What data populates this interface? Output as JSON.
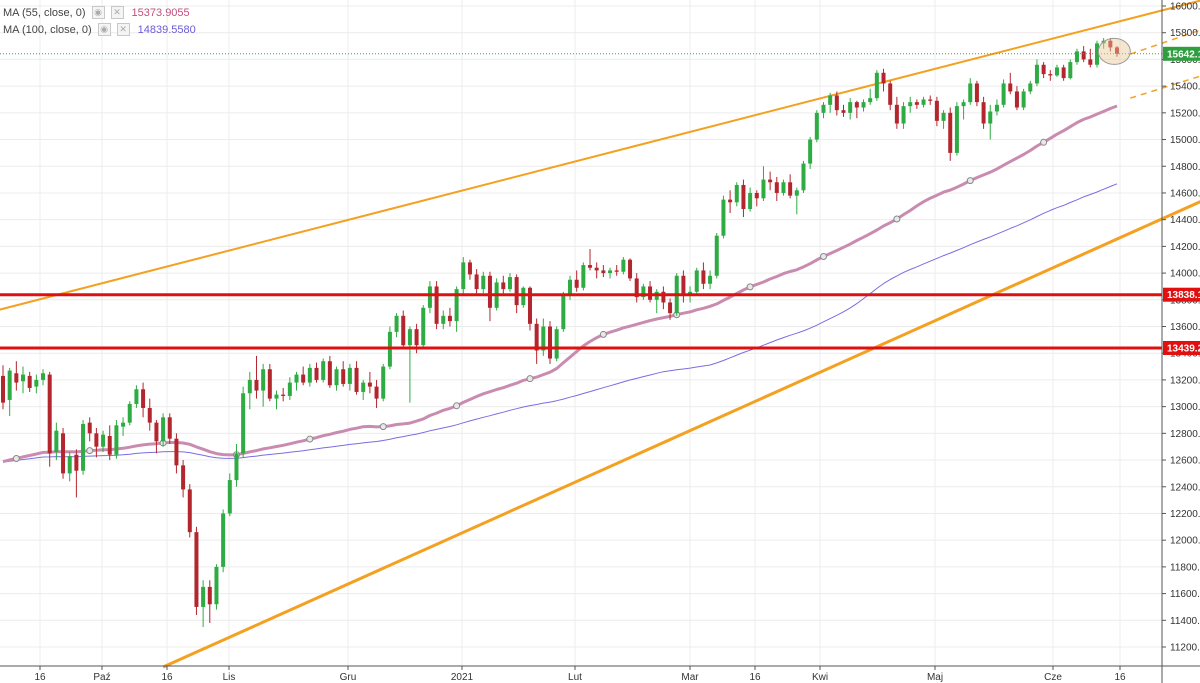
{
  "legend": {
    "ma55": {
      "label": "MA (55, close, 0)",
      "value": "15373.9055",
      "color": "#c0507a"
    },
    "ma100": {
      "label": "MA (100, close, 0)",
      "value": "14839.5580",
      "color": "#6b5bd6"
    }
  },
  "chart_data": {
    "type": "candlestick",
    "title": "",
    "xlabel": "",
    "ylabel": "",
    "ylim": [
      11050,
      16080
    ],
    "y_ticks": [
      "16000.0",
      "15800.0",
      "15600.0",
      "15400.0",
      "15200.0",
      "15000.0",
      "14800.0",
      "14600.0",
      "14400.0",
      "14200.0",
      "14000.0",
      "13800.0",
      "13600.0",
      "13400.0",
      "13200.0",
      "13000.0",
      "12800.0",
      "12600.0",
      "12400.0",
      "12200.0",
      "12000.0",
      "11800.0",
      "11600.0",
      "11400.0",
      "11200.0"
    ],
    "x_ticks": [
      "16",
      "Paź",
      "16",
      "Lis",
      "Gru",
      "2021",
      "Lut",
      "Mar",
      "16",
      "Kwi",
      "Maj",
      "Cze",
      "16"
    ],
    "price_labels": [
      {
        "value": 15642.1,
        "text": "15642.1",
        "color": "#2e9e3f"
      },
      {
        "value": 13838.1,
        "text": "13838.1",
        "color": "#e01010"
      },
      {
        "value": 13439.2,
        "text": "13439.2",
        "color": "#e01010"
      }
    ],
    "horizontal_levels": [
      13838.1,
      13439.2
    ],
    "last_price": 15642.1,
    "colors": {
      "up": "#2eab42",
      "down": "#b3262d",
      "ma55": "#c98bb0",
      "ma100": "#7a6ee0",
      "trend": "#f4a020",
      "level": "#e01010",
      "last": "#3aa04a"
    },
    "candles": [
      {
        "o": 13230,
        "h": 13310,
        "l": 12980,
        "c": 13030
      },
      {
        "o": 13050,
        "h": 13290,
        "l": 12930,
        "c": 13270
      },
      {
        "o": 13250,
        "h": 13340,
        "l": 13120,
        "c": 13180
      },
      {
        "o": 13190,
        "h": 13300,
        "l": 13100,
        "c": 13240
      },
      {
        "o": 13230,
        "h": 13260,
        "l": 13110,
        "c": 13140
      },
      {
        "o": 13150,
        "h": 13240,
        "l": 13100,
        "c": 13200
      },
      {
        "o": 13200,
        "h": 13280,
        "l": 13160,
        "c": 13250
      },
      {
        "o": 13240,
        "h": 13260,
        "l": 12550,
        "c": 12650
      },
      {
        "o": 12660,
        "h": 12880,
        "l": 12600,
        "c": 12820
      },
      {
        "o": 12800,
        "h": 12840,
        "l": 12460,
        "c": 12500
      },
      {
        "o": 12500,
        "h": 12660,
        "l": 12440,
        "c": 12630
      },
      {
        "o": 12640,
        "h": 12680,
        "l": 12320,
        "c": 12520
      },
      {
        "o": 12520,
        "h": 12900,
        "l": 12490,
        "c": 12870
      },
      {
        "o": 12880,
        "h": 12920,
        "l": 12740,
        "c": 12800
      },
      {
        "o": 12800,
        "h": 12840,
        "l": 12620,
        "c": 12700
      },
      {
        "o": 12700,
        "h": 12820,
        "l": 12660,
        "c": 12790
      },
      {
        "o": 12780,
        "h": 12860,
        "l": 12600,
        "c": 12640
      },
      {
        "o": 12640,
        "h": 12900,
        "l": 12610,
        "c": 12860
      },
      {
        "o": 12850,
        "h": 12920,
        "l": 12780,
        "c": 12880
      },
      {
        "o": 12880,
        "h": 13040,
        "l": 12860,
        "c": 13020
      },
      {
        "o": 13020,
        "h": 13160,
        "l": 12990,
        "c": 13130
      },
      {
        "o": 13130,
        "h": 13180,
        "l": 12920,
        "c": 12990
      },
      {
        "o": 12990,
        "h": 13060,
        "l": 12820,
        "c": 12880
      },
      {
        "o": 12880,
        "h": 12900,
        "l": 12650,
        "c": 12740
      },
      {
        "o": 12740,
        "h": 12950,
        "l": 12700,
        "c": 12920
      },
      {
        "o": 12920,
        "h": 12950,
        "l": 12720,
        "c": 12760
      },
      {
        "o": 12760,
        "h": 12800,
        "l": 12500,
        "c": 12560
      },
      {
        "o": 12560,
        "h": 12600,
        "l": 12320,
        "c": 12380
      },
      {
        "o": 12380,
        "h": 12420,
        "l": 12020,
        "c": 12060
      },
      {
        "o": 12060,
        "h": 12100,
        "l": 11440,
        "c": 11500
      },
      {
        "o": 11500,
        "h": 11700,
        "l": 11350,
        "c": 11650
      },
      {
        "o": 11650,
        "h": 11700,
        "l": 11380,
        "c": 11520
      },
      {
        "o": 11520,
        "h": 11820,
        "l": 11480,
        "c": 11800
      },
      {
        "o": 11800,
        "h": 12230,
        "l": 11760,
        "c": 12200
      },
      {
        "o": 12200,
        "h": 12500,
        "l": 12180,
        "c": 12450
      },
      {
        "o": 12450,
        "h": 12720,
        "l": 12400,
        "c": 12650
      },
      {
        "o": 12650,
        "h": 13150,
        "l": 12620,
        "c": 13100
      },
      {
        "o": 13100,
        "h": 13260,
        "l": 12980,
        "c": 13200
      },
      {
        "o": 13200,
        "h": 13380,
        "l": 13060,
        "c": 13120
      },
      {
        "o": 13120,
        "h": 13320,
        "l": 13000,
        "c": 13280
      },
      {
        "o": 13280,
        "h": 13320,
        "l": 13040,
        "c": 13060
      },
      {
        "o": 13060,
        "h": 13120,
        "l": 12980,
        "c": 13090
      },
      {
        "o": 13090,
        "h": 13140,
        "l": 13040,
        "c": 13080
      },
      {
        "o": 13080,
        "h": 13220,
        "l": 13050,
        "c": 13180
      },
      {
        "o": 13180,
        "h": 13260,
        "l": 13120,
        "c": 13240
      },
      {
        "o": 13240,
        "h": 13300,
        "l": 13160,
        "c": 13180
      },
      {
        "o": 13180,
        "h": 13320,
        "l": 13150,
        "c": 13290
      },
      {
        "o": 13290,
        "h": 13330,
        "l": 13180,
        "c": 13200
      },
      {
        "o": 13200,
        "h": 13360,
        "l": 13180,
        "c": 13340
      },
      {
        "o": 13340,
        "h": 13380,
        "l": 13140,
        "c": 13160
      },
      {
        "o": 13160,
        "h": 13300,
        "l": 13120,
        "c": 13280
      },
      {
        "o": 13280,
        "h": 13340,
        "l": 13150,
        "c": 13170
      },
      {
        "o": 13170,
        "h": 13320,
        "l": 13120,
        "c": 13290
      },
      {
        "o": 13290,
        "h": 13340,
        "l": 13090,
        "c": 13110
      },
      {
        "o": 13110,
        "h": 13200,
        "l": 13050,
        "c": 13180
      },
      {
        "o": 13180,
        "h": 13260,
        "l": 13100,
        "c": 13150
      },
      {
        "o": 13150,
        "h": 13200,
        "l": 12990,
        "c": 13060
      },
      {
        "o": 13060,
        "h": 13320,
        "l": 13040,
        "c": 13300
      },
      {
        "o": 13300,
        "h": 13600,
        "l": 13280,
        "c": 13560
      },
      {
        "o": 13560,
        "h": 13700,
        "l": 13520,
        "c": 13680
      },
      {
        "o": 13680,
        "h": 13720,
        "l": 13440,
        "c": 13460
      },
      {
        "o": 13460,
        "h": 13600,
        "l": 13030,
        "c": 13580
      },
      {
        "o": 13580,
        "h": 13620,
        "l": 13400,
        "c": 13460
      },
      {
        "o": 13460,
        "h": 13760,
        "l": 13440,
        "c": 13740
      },
      {
        "o": 13740,
        "h": 13940,
        "l": 13700,
        "c": 13900
      },
      {
        "o": 13900,
        "h": 13940,
        "l": 13580,
        "c": 13620
      },
      {
        "o": 13620,
        "h": 13720,
        "l": 13580,
        "c": 13680
      },
      {
        "o": 13680,
        "h": 13740,
        "l": 13600,
        "c": 13640
      },
      {
        "o": 13640,
        "h": 13900,
        "l": 13560,
        "c": 13880
      },
      {
        "o": 13880,
        "h": 14120,
        "l": 13840,
        "c": 14080
      },
      {
        "o": 14080,
        "h": 14100,
        "l": 13950,
        "c": 13990
      },
      {
        "o": 13990,
        "h": 14030,
        "l": 13840,
        "c": 13880
      },
      {
        "o": 13880,
        "h": 14010,
        "l": 13850,
        "c": 13980
      },
      {
        "o": 13980,
        "h": 14010,
        "l": 13640,
        "c": 13740
      },
      {
        "o": 13740,
        "h": 13960,
        "l": 13720,
        "c": 13930
      },
      {
        "o": 13930,
        "h": 13980,
        "l": 13840,
        "c": 13880
      },
      {
        "o": 13880,
        "h": 14000,
        "l": 13860,
        "c": 13970
      },
      {
        "o": 13970,
        "h": 13990,
        "l": 13700,
        "c": 13760
      },
      {
        "o": 13760,
        "h": 13900,
        "l": 13740,
        "c": 13890
      },
      {
        "o": 13890,
        "h": 13900,
        "l": 13570,
        "c": 13620
      },
      {
        "o": 13620,
        "h": 13660,
        "l": 13320,
        "c": 13420
      },
      {
        "o": 13420,
        "h": 13660,
        "l": 13380,
        "c": 13600
      },
      {
        "o": 13600,
        "h": 13640,
        "l": 13320,
        "c": 13360
      },
      {
        "o": 13360,
        "h": 13600,
        "l": 13340,
        "c": 13580
      },
      {
        "o": 13580,
        "h": 13860,
        "l": 13560,
        "c": 13840
      },
      {
        "o": 13840,
        "h": 13980,
        "l": 13800,
        "c": 13950
      },
      {
        "o": 13950,
        "h": 14020,
        "l": 13860,
        "c": 13890
      },
      {
        "o": 13890,
        "h": 14080,
        "l": 13870,
        "c": 14060
      },
      {
        "o": 14060,
        "h": 14180,
        "l": 14020,
        "c": 14040
      },
      {
        "o": 14040,
        "h": 14080,
        "l": 13960,
        "c": 14020
      },
      {
        "o": 14020,
        "h": 14060,
        "l": 13970,
        "c": 14000
      },
      {
        "o": 14000,
        "h": 14040,
        "l": 13960,
        "c": 14020
      },
      {
        "o": 14020,
        "h": 14060,
        "l": 13980,
        "c": 14010
      },
      {
        "o": 14010,
        "h": 14120,
        "l": 13990,
        "c": 14100
      },
      {
        "o": 14100,
        "h": 14110,
        "l": 13940,
        "c": 13960
      },
      {
        "o": 13960,
        "h": 14000,
        "l": 13780,
        "c": 13820
      },
      {
        "o": 13820,
        "h": 13920,
        "l": 13800,
        "c": 13900
      },
      {
        "o": 13900,
        "h": 13940,
        "l": 13780,
        "c": 13800
      },
      {
        "o": 13800,
        "h": 13880,
        "l": 13700,
        "c": 13860
      },
      {
        "o": 13860,
        "h": 13900,
        "l": 13730,
        "c": 13780
      },
      {
        "o": 13780,
        "h": 13810,
        "l": 13650,
        "c": 13700
      },
      {
        "o": 13700,
        "h": 14000,
        "l": 13680,
        "c": 13980
      },
      {
        "o": 13980,
        "h": 14020,
        "l": 13780,
        "c": 13830
      },
      {
        "o": 13830,
        "h": 13900,
        "l": 13780,
        "c": 13860
      },
      {
        "o": 13860,
        "h": 14040,
        "l": 13840,
        "c": 14020
      },
      {
        "o": 14020,
        "h": 14080,
        "l": 13880,
        "c": 13920
      },
      {
        "o": 13920,
        "h": 14020,
        "l": 13880,
        "c": 13980
      },
      {
        "o": 13980,
        "h": 14300,
        "l": 13960,
        "c": 14280
      },
      {
        "o": 14280,
        "h": 14580,
        "l": 14260,
        "c": 14550
      },
      {
        "o": 14550,
        "h": 14620,
        "l": 14450,
        "c": 14530
      },
      {
        "o": 14530,
        "h": 14680,
        "l": 14500,
        "c": 14660
      },
      {
        "o": 14660,
        "h": 14700,
        "l": 14420,
        "c": 14480
      },
      {
        "o": 14480,
        "h": 14640,
        "l": 14460,
        "c": 14600
      },
      {
        "o": 14600,
        "h": 14620,
        "l": 14500,
        "c": 14560
      },
      {
        "o": 14560,
        "h": 14800,
        "l": 14540,
        "c": 14700
      },
      {
        "o": 14700,
        "h": 14760,
        "l": 14620,
        "c": 14680
      },
      {
        "o": 14680,
        "h": 14720,
        "l": 14540,
        "c": 14600
      },
      {
        "o": 14600,
        "h": 14700,
        "l": 14580,
        "c": 14680
      },
      {
        "o": 14680,
        "h": 14740,
        "l": 14560,
        "c": 14580
      },
      {
        "o": 14580,
        "h": 14640,
        "l": 14440,
        "c": 14620
      },
      {
        "o": 14620,
        "h": 14840,
        "l": 14600,
        "c": 14820
      },
      {
        "o": 14820,
        "h": 15020,
        "l": 14780,
        "c": 15000
      },
      {
        "o": 15000,
        "h": 15220,
        "l": 14980,
        "c": 15200
      },
      {
        "o": 15200,
        "h": 15280,
        "l": 15160,
        "c": 15260
      },
      {
        "o": 15260,
        "h": 15350,
        "l": 15200,
        "c": 15330
      },
      {
        "o": 15330,
        "h": 15360,
        "l": 15180,
        "c": 15220
      },
      {
        "o": 15220,
        "h": 15260,
        "l": 15170,
        "c": 15200
      },
      {
        "o": 15200,
        "h": 15310,
        "l": 15150,
        "c": 15280
      },
      {
        "o": 15280,
        "h": 15290,
        "l": 15160,
        "c": 15240
      },
      {
        "o": 15240,
        "h": 15300,
        "l": 15210,
        "c": 15280
      },
      {
        "o": 15280,
        "h": 15380,
        "l": 15260,
        "c": 15310
      },
      {
        "o": 15310,
        "h": 15520,
        "l": 15290,
        "c": 15500
      },
      {
        "o": 15500,
        "h": 15530,
        "l": 15360,
        "c": 15420
      },
      {
        "o": 15420,
        "h": 15440,
        "l": 15220,
        "c": 15260
      },
      {
        "o": 15260,
        "h": 15320,
        "l": 15080,
        "c": 15120
      },
      {
        "o": 15120,
        "h": 15280,
        "l": 15080,
        "c": 15250
      },
      {
        "o": 15250,
        "h": 15320,
        "l": 15200,
        "c": 15280
      },
      {
        "o": 15280,
        "h": 15300,
        "l": 15230,
        "c": 15260
      },
      {
        "o": 15260,
        "h": 15320,
        "l": 15240,
        "c": 15300
      },
      {
        "o": 15300,
        "h": 15330,
        "l": 15260,
        "c": 15290
      },
      {
        "o": 15290,
        "h": 15320,
        "l": 15100,
        "c": 15140
      },
      {
        "o": 15140,
        "h": 15220,
        "l": 15080,
        "c": 15200
      },
      {
        "o": 15200,
        "h": 15240,
        "l": 14840,
        "c": 14900
      },
      {
        "o": 14900,
        "h": 15280,
        "l": 14880,
        "c": 15250
      },
      {
        "o": 15250,
        "h": 15300,
        "l": 15150,
        "c": 15280
      },
      {
        "o": 15280,
        "h": 15460,
        "l": 15260,
        "c": 15420
      },
      {
        "o": 15420,
        "h": 15440,
        "l": 15250,
        "c": 15280
      },
      {
        "o": 15280,
        "h": 15320,
        "l": 15080,
        "c": 15120
      },
      {
        "o": 15120,
        "h": 15260,
        "l": 15000,
        "c": 15210
      },
      {
        "o": 15210,
        "h": 15300,
        "l": 15180,
        "c": 15260
      },
      {
        "o": 15260,
        "h": 15450,
        "l": 15240,
        "c": 15420
      },
      {
        "o": 15420,
        "h": 15500,
        "l": 15340,
        "c": 15360
      },
      {
        "o": 15360,
        "h": 15400,
        "l": 15220,
        "c": 15240
      },
      {
        "o": 15240,
        "h": 15380,
        "l": 15220,
        "c": 15360
      },
      {
        "o": 15360,
        "h": 15440,
        "l": 15340,
        "c": 15420
      },
      {
        "o": 15420,
        "h": 15600,
        "l": 15400,
        "c": 15560
      },
      {
        "o": 15560,
        "h": 15580,
        "l": 15460,
        "c": 15490
      },
      {
        "o": 15490,
        "h": 15520,
        "l": 15440,
        "c": 15480
      },
      {
        "o": 15480,
        "h": 15560,
        "l": 15470,
        "c": 15540
      },
      {
        "o": 15540,
        "h": 15560,
        "l": 15440,
        "c": 15460
      },
      {
        "o": 15460,
        "h": 15600,
        "l": 15450,
        "c": 15580
      },
      {
        "o": 15580,
        "h": 15680,
        "l": 15560,
        "c": 15660
      },
      {
        "o": 15660,
        "h": 15700,
        "l": 15580,
        "c": 15600
      },
      {
        "o": 15600,
        "h": 15680,
        "l": 15540,
        "c": 15560
      },
      {
        "o": 15560,
        "h": 15740,
        "l": 15540,
        "c": 15720
      },
      {
        "o": 15720,
        "h": 15760,
        "l": 15680,
        "c": 15740
      },
      {
        "o": 15740,
        "h": 15760,
        "l": 15660,
        "c": 15690
      },
      {
        "o": 15690,
        "h": 15700,
        "l": 15620,
        "c": 15642
      }
    ]
  }
}
